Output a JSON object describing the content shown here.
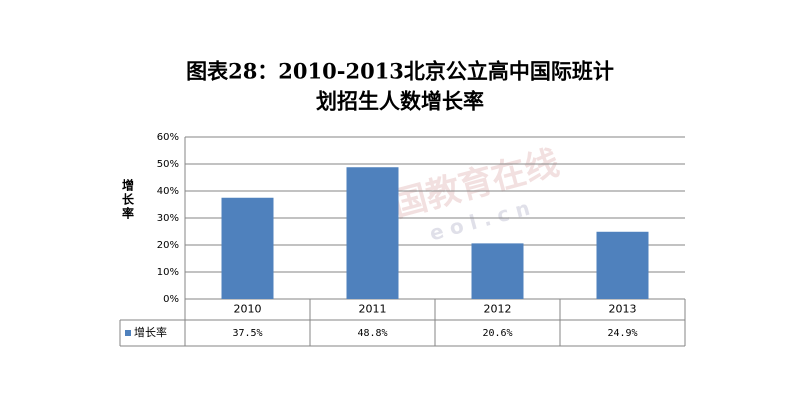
{
  "chart_data": {
    "type": "bar",
    "title": [
      "图表28：2010-2013北京公立高中国际班计",
      "划招生人数增长率"
    ],
    "y_label": "增长率",
    "watermark": "中国教育在线",
    "watermark_sub": "e o l . c n",
    "categories": [
      "2010",
      "2011",
      "2012",
      "2013"
    ],
    "series": [
      {
        "name": "增长率",
        "color": "#4f81bd",
        "values": [
          37.5,
          48.8,
          20.6,
          24.9
        ],
        "value_labels": [
          "37.5%",
          "48.8%",
          "20.6%",
          "24.9%"
        ]
      }
    ],
    "ylim": [
      0,
      60
    ],
    "yticks": [
      {
        "value": 0,
        "label": "0%"
      },
      {
        "value": 10,
        "label": "10%"
      },
      {
        "value": 20,
        "label": "20%"
      },
      {
        "value": 30,
        "label": "30%"
      },
      {
        "value": 40,
        "label": "40%"
      },
      {
        "value": 50,
        "label": "50%"
      },
      {
        "value": 60,
        "label": "60%"
      }
    ],
    "grid": true
  }
}
